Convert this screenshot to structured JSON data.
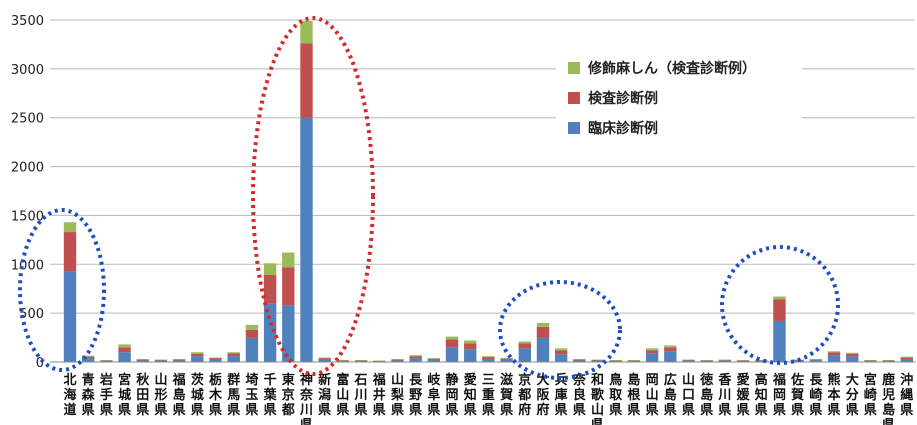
{
  "chart_data": {
    "type": "bar",
    "stacked": true,
    "categories": [
      "北海道",
      "青森県",
      "岩手県",
      "宮城県",
      "秋田県",
      "山形県",
      "福島県",
      "茨城県",
      "栃木県",
      "群馬県",
      "埼玉県",
      "千葉県",
      "東京都",
      "神奈川県",
      "新潟県",
      "富山県",
      "石川県",
      "福井県",
      "山梨県",
      "長野県",
      "岐阜県",
      "静岡県",
      "愛知県",
      "三重県",
      "滋賀県",
      "京都府",
      "大阪府",
      "兵庫県",
      "奈良県",
      "和歌山県",
      "鳥取県",
      "島根県",
      "岡山県",
      "広島県",
      "山口県",
      "徳島県",
      "香川県",
      "愛媛県",
      "高知県",
      "福岡県",
      "佐賀県",
      "長崎県",
      "熊本県",
      "大分県",
      "宮崎県",
      "鹿児島県",
      "沖縄県"
    ],
    "series": [
      {
        "name": "臨床診断例",
        "color": "#4f81bd",
        "values": [
          930,
          40,
          10,
          100,
          15,
          15,
          15,
          60,
          25,
          60,
          250,
          600,
          580,
          2500,
          25,
          10,
          10,
          5,
          15,
          40,
          20,
          150,
          130,
          30,
          25,
          140,
          250,
          80,
          15,
          15,
          10,
          10,
          90,
          110,
          15,
          10,
          15,
          10,
          10,
          420,
          15,
          20,
          70,
          60,
          10,
          10,
          30
        ]
      },
      {
        "name": "検査診断例",
        "color": "#c0504d",
        "values": [
          400,
          15,
          5,
          50,
          10,
          5,
          10,
          25,
          15,
          30,
          80,
          290,
          390,
          760,
          15,
          5,
          5,
          5,
          10,
          20,
          10,
          80,
          60,
          20,
          10,
          50,
          110,
          40,
          10,
          5,
          5,
          5,
          30,
          40,
          5,
          5,
          5,
          5,
          5,
          220,
          5,
          5,
          30,
          25,
          5,
          5,
          15
        ]
      },
      {
        "name": "修飾麻しん（検査診断例）",
        "color": "#9bbb59",
        "values": [
          100,
          10,
          5,
          30,
          5,
          5,
          5,
          15,
          5,
          10,
          50,
          120,
          150,
          230,
          5,
          5,
          5,
          5,
          5,
          10,
          10,
          30,
          30,
          10,
          5,
          20,
          40,
          20,
          5,
          5,
          5,
          5,
          20,
          20,
          5,
          5,
          5,
          5,
          5,
          30,
          5,
          5,
          10,
          10,
          5,
          5,
          10
        ]
      }
    ],
    "ylim": [
      0,
      3500
    ],
    "yticks": [
      0,
      500,
      1000,
      1500,
      2000,
      2500,
      3000,
      3500
    ],
    "xlabel": "",
    "ylabel": "",
    "title": "",
    "grid": true,
    "legend_position": "top-right"
  }
}
